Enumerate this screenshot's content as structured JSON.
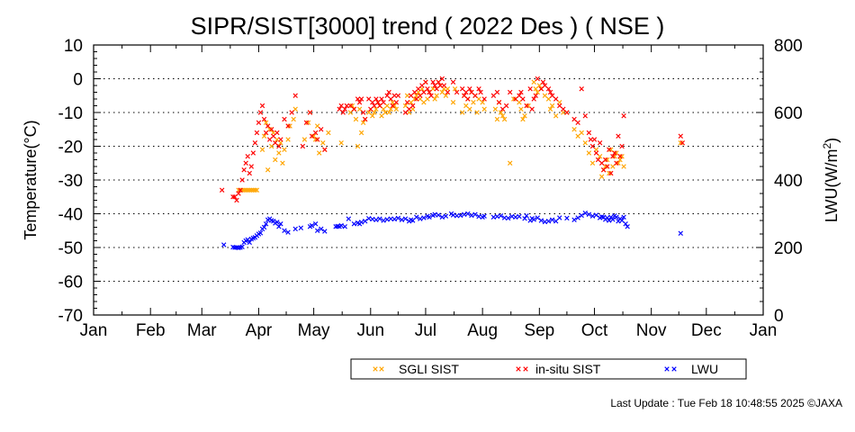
{
  "chart_data": {
    "type": "scatter",
    "title": "SIPR/SIST[3000] trend ( 2022 Des ) ( NSE )",
    "ylabel": "Temperature(°C)",
    "y2label": "LWU(W/m",
    "y2label_sup": "2",
    "y2label_end": ")",
    "ylim": [
      -70,
      10
    ],
    "y2lim": [
      0,
      800
    ],
    "yticks": [
      "10",
      "0",
      "-10",
      "-20",
      "-30",
      "-40",
      "-50",
      "-60",
      "-70"
    ],
    "y2ticks": [
      "800",
      "600",
      "400",
      "200",
      "0"
    ],
    "months": [
      "Jan",
      "Feb",
      "Mar",
      "Apr",
      "May",
      "Jun",
      "Jul",
      "Aug",
      "Sep",
      "Oct",
      "Nov",
      "Dec",
      "Jan"
    ],
    "grid": "dotted horizontal",
    "legend_position": "bottom-right",
    "colors": {
      "sgli": "#ffa500",
      "insitu": "#ff0000",
      "lwu": "#0000ff"
    },
    "series": [
      {
        "name": "SGLI SIST",
        "axis": "left",
        "x": [
          79,
          80,
          81,
          82,
          83,
          84,
          85,
          86,
          87,
          88,
          89,
          92,
          93,
          94,
          95,
          96,
          97,
          98,
          99,
          100,
          101,
          102,
          103,
          104,
          106,
          107,
          109,
          110,
          115,
          117,
          118,
          120,
          121,
          122,
          123,
          125,
          126,
          128,
          135,
          140,
          141,
          142,
          143,
          144,
          145,
          146,
          147,
          148,
          150,
          152,
          153,
          154,
          155,
          156,
          157,
          158,
          159,
          160,
          161,
          162,
          163,
          164,
          165,
          170,
          171,
          172,
          173,
          174,
          175,
          176,
          177,
          178,
          179,
          180,
          181,
          182,
          183,
          185,
          186,
          187,
          188,
          189,
          190,
          191,
          192,
          193,
          196,
          197,
          201,
          202,
          203,
          204,
          205,
          206,
          207,
          208,
          209,
          210,
          212,
          213,
          219,
          220,
          221,
          222,
          223,
          224,
          227,
          229,
          232,
          233,
          234,
          235,
          237,
          240,
          241,
          242,
          243,
          244,
          246,
          248,
          249,
          250,
          252,
          254,
          256,
          258,
          262,
          264,
          266,
          268,
          270,
          272,
          274,
          276,
          277,
          278,
          279,
          280,
          281,
          282,
          283,
          284,
          285,
          286,
          287,
          288,
          289,
          320
        ],
        "y": [
          -33,
          -33,
          -33,
          -33,
          -33,
          -33,
          -33,
          -33,
          -33,
          -33,
          -33,
          -21,
          -17,
          -13,
          -27,
          -15,
          -20,
          -16,
          -24,
          -18,
          -22,
          -19,
          -25,
          -21,
          -18,
          -14,
          -12,
          -9,
          -18,
          -13,
          -10,
          -17,
          -18,
          -14,
          -22,
          -19,
          -21,
          -16,
          -19,
          -10,
          -8,
          -9,
          -12,
          -20,
          -9,
          -16,
          -13,
          -12,
          -10,
          -11,
          -10,
          -9,
          -7,
          -8,
          -11,
          -9,
          -10,
          -8,
          -10,
          -9,
          -7,
          -8,
          -9,
          -8,
          -5,
          -10,
          -7,
          -9,
          -6,
          -5,
          -4,
          -6,
          -3,
          -7,
          -1,
          -6,
          -4,
          -3,
          -6,
          -5,
          -1,
          -2,
          -4,
          -3,
          -5,
          -3,
          -7,
          -3,
          -10,
          -5,
          -8,
          -6,
          -9,
          -4,
          -7,
          -5,
          -10,
          -6,
          -7,
          -9,
          -9,
          -12,
          -7,
          -10,
          -11,
          -12,
          -25,
          -6,
          -7,
          -9,
          -12,
          -11,
          -8,
          -1,
          -3,
          -4,
          -2,
          -3,
          -5,
          -6,
          -9,
          -8,
          -11,
          -7,
          -10,
          -10,
          -15,
          -17,
          -16,
          -19,
          -22,
          -25,
          -21,
          -23,
          -29,
          -27,
          -26,
          -24,
          -28,
          -21,
          -26,
          -23,
          -22,
          -25,
          -24,
          -23,
          -26,
          -19
        ],
        "marker_size": 8
      },
      {
        "name": "in-situ SIST",
        "axis": "left",
        "x": [
          70,
          76,
          77,
          78,
          79,
          80,
          81,
          82,
          83,
          84,
          85,
          86,
          87,
          88,
          89,
          90,
          91,
          92,
          93,
          94,
          95,
          96,
          97,
          98,
          99,
          100,
          101,
          102,
          104,
          106,
          108,
          110,
          114,
          116,
          118,
          119,
          121,
          122,
          124,
          126,
          134,
          135,
          136,
          137,
          138,
          140,
          142,
          144,
          145,
          146,
          147,
          148,
          150,
          151,
          152,
          153,
          154,
          155,
          156,
          157,
          158,
          160,
          161,
          162,
          163,
          164,
          165,
          166,
          170,
          171,
          172,
          173,
          174,
          175,
          176,
          177,
          178,
          179,
          180,
          181,
          182,
          183,
          184,
          185,
          186,
          187,
          188,
          189,
          190,
          191,
          193,
          196,
          198,
          201,
          202,
          203,
          204,
          205,
          206,
          208,
          210,
          211,
          213,
          218,
          220,
          221,
          223,
          225,
          227,
          230,
          232,
          233,
          234,
          236,
          238,
          239,
          240,
          241,
          242,
          244,
          245,
          246,
          248,
          249,
          250,
          252,
          254,
          256,
          258,
          262,
          264,
          266,
          268,
          270,
          271,
          272,
          273,
          274,
          275,
          276,
          277,
          278,
          279,
          280,
          281,
          282,
          283,
          284,
          285,
          286,
          287,
          288,
          289,
          320,
          321
        ],
        "y": [
          -33,
          -35,
          -35,
          -36,
          -34,
          -33,
          -30,
          -27,
          -25,
          -23,
          -28,
          -26,
          -22,
          -19,
          -16,
          -13,
          -10,
          -8,
          -12,
          -16,
          -14,
          -18,
          -15,
          -17,
          -19,
          -16,
          -20,
          -18,
          -12,
          -14,
          -10,
          -5,
          -20,
          -13,
          -10,
          -17,
          -16,
          -18,
          -15,
          -21,
          -9,
          -8,
          -10,
          -9,
          -8,
          -8,
          -9,
          -6,
          -7,
          -6,
          -10,
          -12,
          -6,
          -9,
          -7,
          -8,
          -6,
          -7,
          -8,
          -6,
          -7,
          -5,
          -4,
          -6,
          -8,
          -5,
          -7,
          -5,
          -10,
          -7,
          -9,
          -5,
          -8,
          -4,
          -6,
          -3,
          -5,
          -2,
          -4,
          -1,
          -3,
          -4,
          -5,
          -1,
          -2,
          -3,
          -1,
          -2,
          0,
          -2,
          -4,
          -1,
          -4,
          -3,
          -5,
          -4,
          -6,
          -3,
          -4,
          -5,
          -3,
          -4,
          -6,
          -5,
          -4,
          -7,
          -9,
          -8,
          -4,
          -6,
          -5,
          -4,
          -6,
          -8,
          -3,
          -9,
          -6,
          -5,
          0,
          -3,
          -1,
          -2,
          -3,
          -4,
          -5,
          -6,
          -8,
          -9,
          -10,
          -12,
          -13,
          -3,
          -11,
          -16,
          -18,
          -20,
          -18,
          -22,
          -24,
          -19,
          -25,
          -27,
          -24,
          -26,
          -21,
          -28,
          -23,
          -22,
          -25,
          -17,
          -23,
          -20,
          -11,
          -17,
          -19
        ],
        "marker_size": 8
      },
      {
        "name": "LWU",
        "axis": "right",
        "x": [
          71,
          76,
          77,
          78,
          79,
          80,
          81,
          82,
          83,
          84,
          85,
          86,
          87,
          88,
          89,
          90,
          91,
          92,
          93,
          94,
          95,
          96,
          97,
          98,
          99,
          100,
          101,
          102,
          104,
          106,
          110,
          113,
          118,
          119,
          121,
          122,
          124,
          126,
          132,
          133,
          134,
          135,
          137,
          139,
          142,
          144,
          145,
          146,
          148,
          150,
          152,
          154,
          156,
          158,
          160,
          162,
          164,
          166,
          168,
          170,
          172,
          173,
          174,
          176,
          178,
          180,
          182,
          183,
          185,
          186,
          188,
          190,
          192,
          195,
          196,
          198,
          200,
          202,
          204,
          206,
          208,
          210,
          212,
          213,
          218,
          220,
          222,
          224,
          226,
          228,
          230,
          232,
          235,
          236,
          238,
          239,
          240,
          242,
          244,
          246,
          248,
          250,
          252,
          254,
          258,
          262,
          264,
          266,
          268,
          270,
          272,
          274,
          276,
          277,
          278,
          279,
          280,
          281,
          282,
          283,
          284,
          285,
          286,
          287,
          288,
          289,
          290,
          291,
          320
        ],
        "y": [
          208,
          201,
          200,
          200,
          199,
          200,
          202,
          215,
          220,
          223,
          215,
          225,
          228,
          230,
          235,
          240,
          243,
          255,
          260,
          270,
          282,
          285,
          280,
          278,
          272,
          275,
          262,
          270,
          250,
          245,
          255,
          258,
          262,
          265,
          270,
          250,
          255,
          248,
          262,
          263,
          262,
          265,
          262,
          285,
          270,
          273,
          270,
          275,
          278,
          286,
          284,
          282,
          285,
          280,
          283,
          285,
          284,
          287,
          282,
          285,
          278,
          282,
          280,
          290,
          285,
          288,
          293,
          290,
          295,
          298,
          296,
          290,
          293,
          300,
          296,
          294,
          295,
          298,
          300,
          295,
          298,
          292,
          290,
          293,
          290,
          292,
          294,
          288,
          287,
          292,
          290,
          292,
          286,
          294,
          280,
          286,
          283,
          288,
          280,
          276,
          278,
          282,
          278,
          288,
          287,
          282,
          288,
          295,
          302,
          298,
          293,
          296,
          288,
          291,
          290,
          283,
          288,
          280,
          290,
          283,
          294,
          290,
          278,
          285,
          280,
          290,
          270,
          262,
          242
        ],
        "marker_size": 8
      }
    ]
  },
  "legend": {
    "sgli": "SGLI SIST",
    "insitu": "in-situ SIST",
    "lwu": "LWU"
  },
  "footer": "Last Update : Tue Feb 18 10:48:55 2025  ©JAXA"
}
